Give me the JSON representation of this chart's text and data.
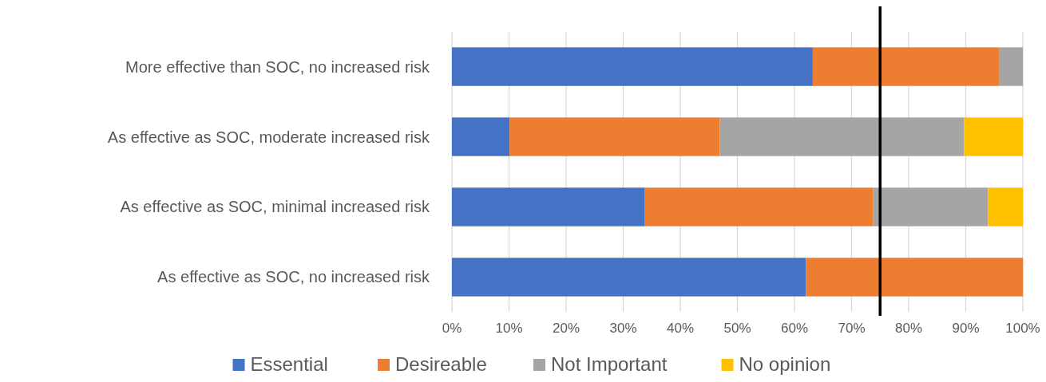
{
  "chart_data": {
    "type": "bar",
    "orientation": "horizontal",
    "stacked": true,
    "categories": [
      "More effective than SOC, no increased risk",
      "As effective as SOC, moderate increased risk",
      "As effective as SOC, minimal increased risk",
      "As effective as SOC, no increased risk"
    ],
    "series": [
      {
        "name": "Essential",
        "color": "#4472c4",
        "values": [
          63.2,
          10.1,
          33.8,
          62.0
        ]
      },
      {
        "name": "Desireable",
        "color": "#ed7d31",
        "values": [
          32.6,
          36.8,
          40.0,
          38.0
        ]
      },
      {
        "name": "Not Important",
        "color": "#a5a5a5",
        "values": [
          4.2,
          42.8,
          20.1,
          0
        ]
      },
      {
        "name": "No opinion",
        "color": "#ffc000",
        "values": [
          0,
          10.3,
          6.1,
          0
        ]
      }
    ],
    "xlim": [
      0,
      100
    ],
    "xticks": [
      {
        "value": 0,
        "label": "0%"
      },
      {
        "value": 10,
        "label": "10%"
      },
      {
        "value": 20,
        "label": "20%"
      },
      {
        "value": 30,
        "label": "30%"
      },
      {
        "value": 40,
        "label": "40%"
      },
      {
        "value": 50,
        "label": "50%"
      },
      {
        "value": 60,
        "label": "60%"
      },
      {
        "value": 70,
        "label": "70%"
      },
      {
        "value": 80,
        "label": "80%"
      },
      {
        "value": 90,
        "label": "90%"
      },
      {
        "value": 100,
        "label": "100%"
      }
    ],
    "ref_lines": [
      {
        "axis": "x",
        "value": 75,
        "color": "#000000"
      }
    ],
    "grid": "x",
    "legend": "bottom"
  }
}
